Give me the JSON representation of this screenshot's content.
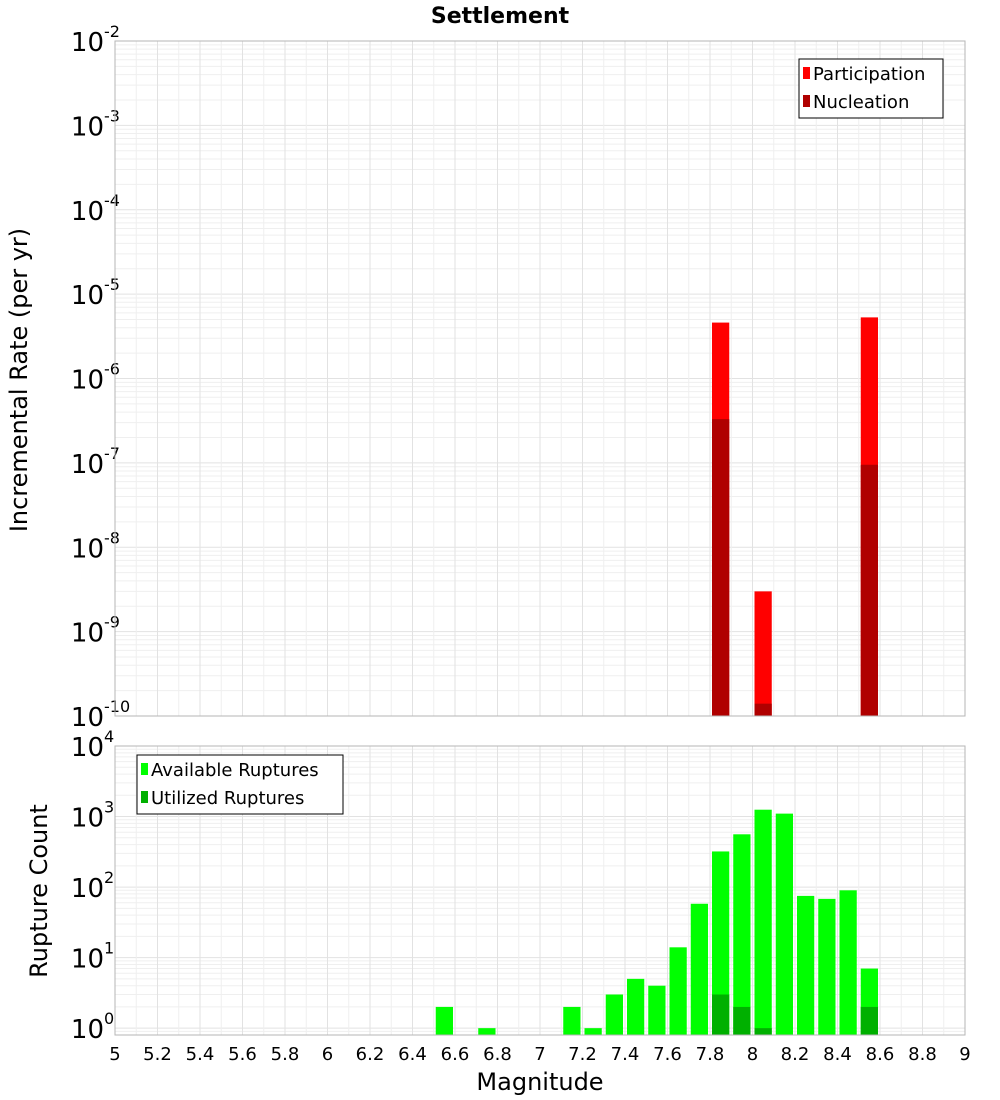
{
  "chart_data": [
    {
      "type": "bar",
      "title": "Settlement",
      "xlabel": "",
      "ylabel": "Incremental Rate (per yr)",
      "y_scale": "log",
      "ylim": [
        1e-10,
        0.01
      ],
      "xlim": [
        5.0,
        9.0
      ],
      "y_ticks": [
        {
          "base": "10",
          "exp": "-10"
        },
        {
          "base": "10",
          "exp": "-9"
        },
        {
          "base": "10",
          "exp": "-8"
        },
        {
          "base": "10",
          "exp": "-7"
        },
        {
          "base": "10",
          "exp": "-6"
        },
        {
          "base": "10",
          "exp": "-5"
        },
        {
          "base": "10",
          "exp": "-4"
        },
        {
          "base": "10",
          "exp": "-3"
        },
        {
          "base": "10",
          "exp": "-2"
        }
      ],
      "grid": true,
      "legend_position": "top-right",
      "colors": {
        "Participation": "#ff0000",
        "Nucleation": "#b00000"
      },
      "series": [
        {
          "name": "Participation",
          "x": [
            7.85,
            8.05,
            8.55
          ],
          "values": [
            4.6e-06,
            3e-09,
            5.3e-06
          ]
        },
        {
          "name": "Nucleation",
          "x": [
            7.85,
            8.05,
            8.55
          ],
          "values": [
            3.3e-07,
            1.4e-10,
            9.5e-08
          ]
        }
      ]
    },
    {
      "type": "bar",
      "title": "",
      "xlabel": "Magnitude",
      "ylabel": "Rupture Count",
      "y_scale": "log",
      "ylim": [
        0.8,
        10000
      ],
      "xlim": [
        5.0,
        9.0
      ],
      "x_ticks": [
        "5",
        "5.2",
        "5.4",
        "5.6",
        "5.8",
        "6",
        "6.2",
        "6.4",
        "6.6",
        "6.8",
        "7",
        "7.2",
        "7.4",
        "7.6",
        "7.8",
        "8",
        "8.2",
        "8.4",
        "8.6",
        "8.8",
        "9"
      ],
      "y_ticks": [
        {
          "base": "10",
          "exp": "0"
        },
        {
          "base": "10",
          "exp": "1"
        },
        {
          "base": "10",
          "exp": "2"
        },
        {
          "base": "10",
          "exp": "3"
        },
        {
          "base": "10",
          "exp": "4"
        }
      ],
      "grid": true,
      "legend_position": "top-left",
      "colors": {
        "Available Ruptures": "#00ff00",
        "Utilized Ruptures": "#00b000"
      },
      "series": [
        {
          "name": "Available Ruptures",
          "x": [
            6.55,
            6.75,
            7.15,
            7.25,
            7.35,
            7.45,
            7.55,
            7.65,
            7.75,
            7.85,
            7.95,
            8.05,
            8.15,
            8.25,
            8.35,
            8.45,
            8.55
          ],
          "values": [
            2,
            1,
            2,
            1,
            3,
            5,
            4,
            14,
            58,
            320,
            560,
            1250,
            1100,
            75,
            68,
            90,
            7
          ]
        },
        {
          "name": "Utilized Ruptures",
          "x": [
            7.85,
            7.95,
            8.05,
            8.55
          ],
          "values": [
            3,
            2,
            1,
            2
          ]
        }
      ]
    }
  ]
}
